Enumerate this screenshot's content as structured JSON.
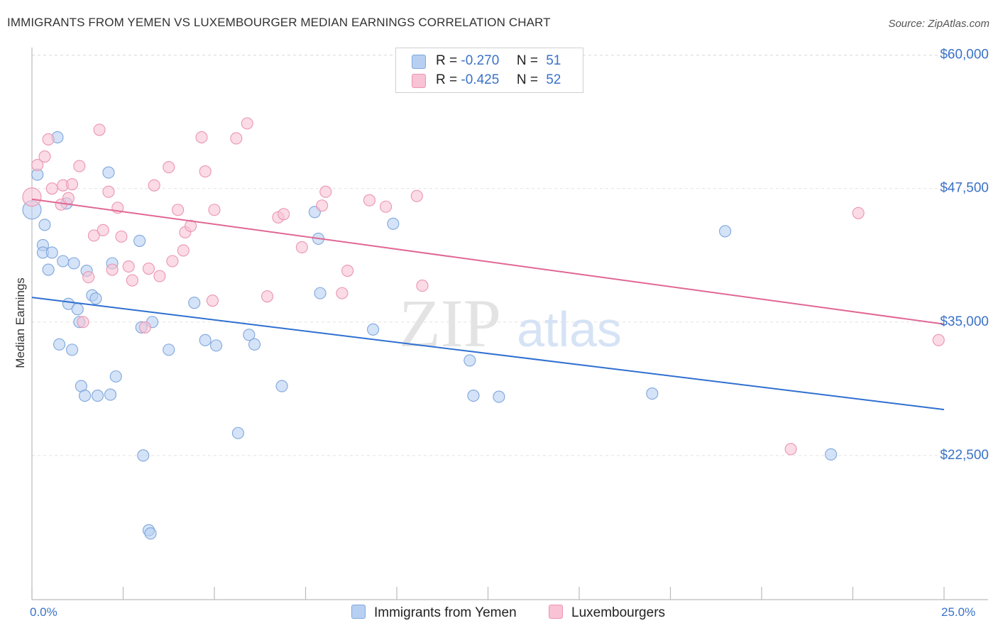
{
  "title": "IMMIGRANTS FROM YEMEN VS LUXEMBOURGER MEDIAN EARNINGS CORRELATION CHART",
  "source": "Source: ZipAtlas.com",
  "watermark": {
    "zip": "ZIP",
    "atlas": "atlas"
  },
  "legend": {
    "r_label": "R =",
    "n_label": "N =",
    "series1": {
      "r": "-0.270",
      "n": "51"
    },
    "series2": {
      "r": "-0.425",
      "n": "52"
    }
  },
  "chart_data": {
    "type": "scatter",
    "title": "IMMIGRANTS FROM YEMEN VS LUXEMBOURGER MEDIAN EARNINGS CORRELATION CHART",
    "xlabel": "",
    "ylabel": "Median Earnings",
    "xlim": [
      0,
      25
    ],
    "ylim": [
      9000,
      61500
    ],
    "x_tick_labels": {
      "min": "0.0%",
      "max": "25.0%"
    },
    "y_ticks": [
      {
        "value": 22500,
        "label": "$22,500"
      },
      {
        "value": 35000,
        "label": "$35,000"
      },
      {
        "value": 47500,
        "label": "$47,500"
      },
      {
        "value": 60000,
        "label": "$60,000"
      }
    ],
    "colors": {
      "blue_fill": "#b7d0f2",
      "blue_stroke": "#7fa6dd",
      "blue_line": "#2f6fd0",
      "pink_fill": "#f8c3d4",
      "pink_stroke": "#eb95b1",
      "pink_line": "#e06794",
      "axis_label": "#3a72c8"
    },
    "series": [
      {
        "name": "Immigrants from Yemen",
        "color": "#b7d0f2",
        "trend": {
          "x0": 0,
          "y0": 37300,
          "x1": 25,
          "y1": 26800
        },
        "points": [
          [
            0.0,
            45500
          ],
          [
            0.15,
            48800
          ],
          [
            0.35,
            44100
          ],
          [
            0.3,
            42200
          ],
          [
            0.3,
            41500
          ],
          [
            0.45,
            39900
          ],
          [
            0.55,
            41500
          ],
          [
            0.7,
            52300
          ],
          [
            0.85,
            40700
          ],
          [
            0.95,
            46100
          ],
          [
            1.0,
            36700
          ],
          [
            1.15,
            40500
          ],
          [
            1.25,
            36200
          ],
          [
            1.5,
            39800
          ],
          [
            1.65,
            37500
          ],
          [
            1.75,
            37200
          ],
          [
            2.1,
            49000
          ],
          [
            2.2,
            40500
          ],
          [
            0.75,
            32900
          ],
          [
            1.1,
            32400
          ],
          [
            1.3,
            35000
          ],
          [
            1.35,
            29000
          ],
          [
            1.45,
            28100
          ],
          [
            1.8,
            28100
          ],
          [
            2.15,
            28200
          ],
          [
            2.3,
            29900
          ],
          [
            2.95,
            42600
          ],
          [
            3.0,
            34500
          ],
          [
            3.3,
            35000
          ],
          [
            3.75,
            32400
          ],
          [
            3.05,
            22500
          ],
          [
            3.2,
            15500
          ],
          [
            3.25,
            15200
          ],
          [
            4.45,
            36800
          ],
          [
            4.75,
            33300
          ],
          [
            5.05,
            32800
          ],
          [
            5.65,
            24600
          ],
          [
            5.95,
            33800
          ],
          [
            6.1,
            32900
          ],
          [
            6.85,
            29000
          ],
          [
            7.75,
            45300
          ],
          [
            7.85,
            42800
          ],
          [
            7.9,
            37700
          ],
          [
            9.35,
            34300
          ],
          [
            9.9,
            44200
          ],
          [
            12.0,
            31400
          ],
          [
            12.1,
            28100
          ],
          [
            12.8,
            28000
          ],
          [
            17.0,
            28300
          ],
          [
            19.0,
            43500
          ],
          [
            21.9,
            22600
          ]
        ]
      },
      {
        "name": "Luxembourgers",
        "color": "#f8c3d4",
        "trend": {
          "x0": 0,
          "y0": 46500,
          "x1": 25,
          "y1": 34800
        },
        "points": [
          [
            0.0,
            46700
          ],
          [
            0.15,
            49700
          ],
          [
            0.35,
            50500
          ],
          [
            0.45,
            52100
          ],
          [
            0.55,
            47500
          ],
          [
            0.8,
            46000
          ],
          [
            0.85,
            47800
          ],
          [
            1.0,
            46600
          ],
          [
            1.1,
            47900
          ],
          [
            1.3,
            49600
          ],
          [
            1.4,
            35000
          ],
          [
            1.55,
            39200
          ],
          [
            1.7,
            43100
          ],
          [
            1.85,
            53000
          ],
          [
            1.95,
            43600
          ],
          [
            2.1,
            47200
          ],
          [
            2.2,
            39900
          ],
          [
            2.35,
            45700
          ],
          [
            2.45,
            43000
          ],
          [
            2.65,
            40200
          ],
          [
            2.75,
            38900
          ],
          [
            3.1,
            34500
          ],
          [
            3.2,
            40000
          ],
          [
            3.35,
            47800
          ],
          [
            3.5,
            39300
          ],
          [
            3.75,
            49500
          ],
          [
            3.85,
            40700
          ],
          [
            4.0,
            45500
          ],
          [
            4.15,
            41700
          ],
          [
            4.2,
            43400
          ],
          [
            4.35,
            44000
          ],
          [
            4.65,
            52300
          ],
          [
            4.75,
            49100
          ],
          [
            4.95,
            37000
          ],
          [
            5.0,
            45500
          ],
          [
            5.6,
            52200
          ],
          [
            5.9,
            53600
          ],
          [
            6.45,
            37400
          ],
          [
            6.75,
            44800
          ],
          [
            6.9,
            45100
          ],
          [
            7.4,
            42000
          ],
          [
            7.95,
            45900
          ],
          [
            8.05,
            47200
          ],
          [
            8.5,
            37700
          ],
          [
            8.65,
            39800
          ],
          [
            9.25,
            46400
          ],
          [
            9.7,
            45800
          ],
          [
            10.55,
            46800
          ],
          [
            10.7,
            38400
          ],
          [
            20.8,
            23100
          ],
          [
            22.65,
            45200
          ],
          [
            24.85,
            33300
          ]
        ]
      }
    ]
  }
}
